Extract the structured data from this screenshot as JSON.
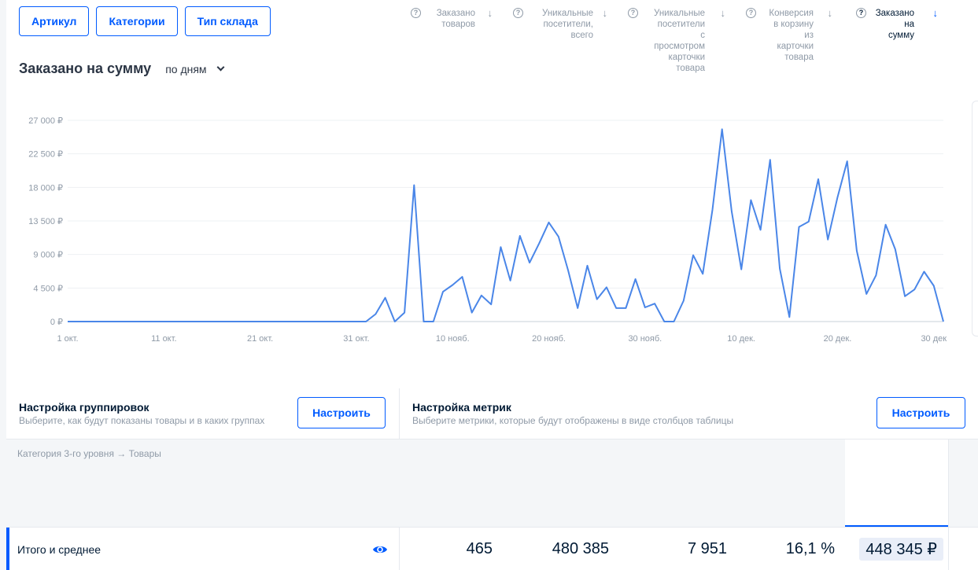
{
  "filters": [
    "Артикул",
    "Категории",
    "Тип склада"
  ],
  "chart_header": {
    "title": "Заказано на сумму",
    "period": "по дням"
  },
  "chart_data": {
    "type": "line",
    "title": "Заказано на сумму",
    "x_ticks": [
      "1 окт.",
      "11 окт.",
      "21 окт.",
      "31 окт.",
      "10 нояб.",
      "20 нояб.",
      "30 нояб.",
      "10 дек.",
      "20 дек.",
      "30 дек"
    ],
    "y_ticks": [
      "0 ₽",
      "4 500 ₽",
      "9 000 ₽",
      "13 500 ₽",
      "18 000 ₽",
      "22 500 ₽",
      "27 000 ₽"
    ],
    "ylim": [
      0,
      27000
    ],
    "x_range": [
      "2023-10-01",
      "2023-12-31"
    ],
    "grid": true,
    "series": [
      {
        "values": [
          0,
          0,
          0,
          0,
          0,
          0,
          0,
          0,
          0,
          0,
          0,
          0,
          0,
          0,
          0,
          0,
          0,
          0,
          0,
          0,
          0,
          0,
          0,
          0,
          0,
          0,
          0,
          0,
          0,
          0,
          0,
          0,
          1000,
          3200,
          0,
          1200,
          18300,
          0,
          0,
          4000,
          4900,
          6000,
          1200,
          3500,
          2300,
          10000,
          5500,
          11500,
          7900,
          10500,
          13300,
          11400,
          6900,
          1800,
          7500,
          3000,
          4600,
          1800,
          1800,
          5700,
          1900,
          2400,
          0,
          0,
          2800,
          8900,
          6400,
          15000,
          25800,
          14800,
          7000,
          16300,
          12300,
          21700,
          7100,
          600,
          12700,
          13400,
          19100,
          11000,
          16700,
          21500,
          9500,
          3700,
          6200,
          13000,
          9700,
          3400,
          4300,
          6700,
          4800,
          0
        ]
      }
    ],
    "color": "#4a86e8"
  },
  "group_settings": {
    "title": "Настройка группировок",
    "subtitle": "Выберите, как будут показаны товары и в каких группах",
    "button": "Настроить"
  },
  "metric_settings": {
    "title": "Настройка метрик",
    "subtitle": "Выберите метрики, которые будут отображены в виде столбцов таблицы",
    "button": "Настроить"
  },
  "table": {
    "group_header": "Категория 3-го уровня → Товары",
    "columns": [
      {
        "label": "Заказано\nтоваров",
        "value": "465"
      },
      {
        "label": "Уникальные\nпосетители,\nвсего",
        "value": "480 385"
      },
      {
        "label": "Уникальные\nпосетители\nс\nпросмотром\nкарточки\nтовара",
        "value": "7 951"
      },
      {
        "label": "Конверсия\nв корзину\nиз\nкарточки\nтовара",
        "value": "16,1 %"
      },
      {
        "label": "Заказано\nна\nсумму",
        "value": "448 345 ₽"
      }
    ],
    "help_glyph": "?",
    "sort_glyph": "↓",
    "total_row_label": "Итого и среднее"
  }
}
